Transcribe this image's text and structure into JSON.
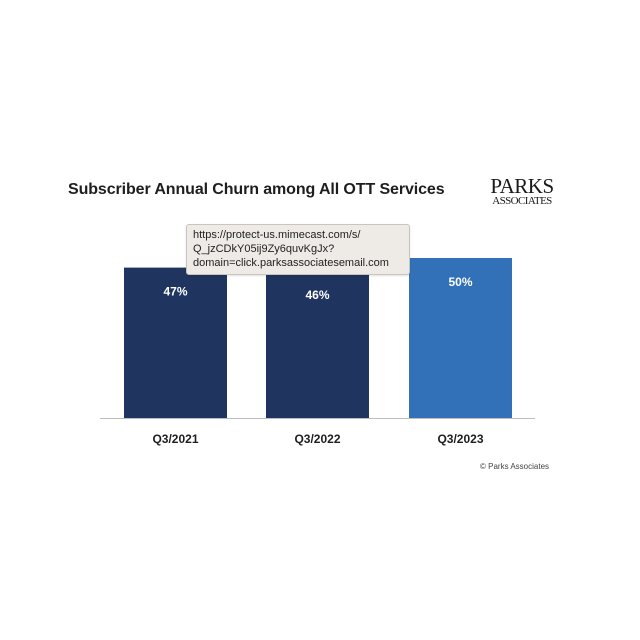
{
  "chart_data": {
    "type": "bar",
    "title": "Subscriber Annual Churn among All OTT Services",
    "categories": [
      "Q3/2021",
      "Q3/2022",
      "Q3/2023"
    ],
    "values": [
      47,
      46,
      50
    ],
    "value_labels": [
      "47%",
      "46%",
      "50%"
    ],
    "unit": "%",
    "ylim": [
      0,
      50
    ],
    "grid": false,
    "legend": "none",
    "bar_colors": [
      "#1f3560",
      "#1f3560",
      "#3271b8"
    ]
  },
  "logo": {
    "line1": "PARKS",
    "line2": "ASSOCIATES"
  },
  "tooltip": {
    "lines": [
      "https://protect-us.mimecast.com/s/",
      "Q_jzCDkY05ij9Zy6quvKgJx?",
      "domain=click.parksassociatesemail.com"
    ]
  },
  "copyright": "© Parks Associates",
  "colors": {
    "axis": "#bdbdbd",
    "label_text": "#1e1e1e",
    "value_text": "#ffffff"
  }
}
